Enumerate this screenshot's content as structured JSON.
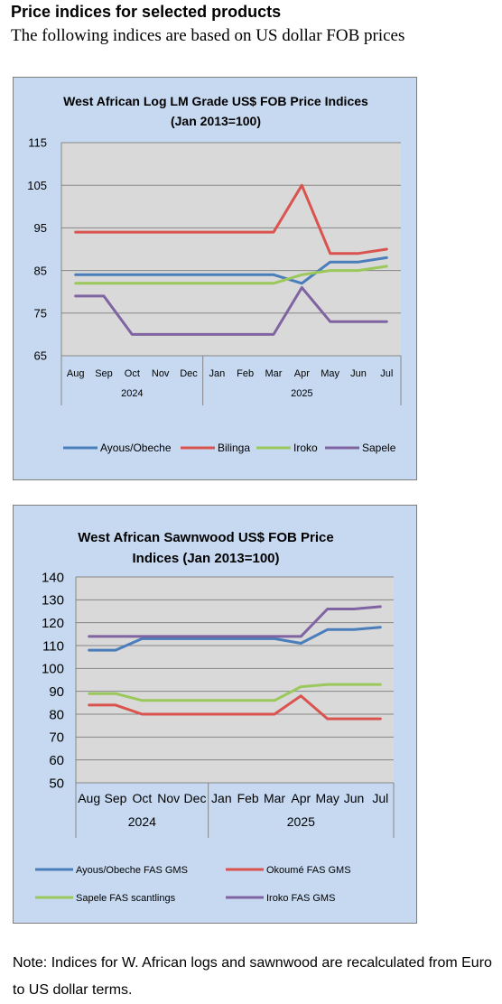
{
  "page": {
    "heading": "Price indices for selected products",
    "subheading": "The following indices are based on US dollar FOB prices",
    "note": "Note: Indices for W. African logs and sawnwood are recalculated from Euro to US dollar terms."
  },
  "chart_data": [
    {
      "type": "line",
      "title_lines": [
        "West African Log LM Grade US$ FOB Price Indices",
        "(Jan 2013=100)"
      ],
      "categories": [
        "Aug",
        "Sep",
        "Oct",
        "Nov",
        "Dec",
        "Jan",
        "Feb",
        "Mar",
        "Apr",
        "May",
        "Jun",
        "Jul"
      ],
      "year_groups": [
        {
          "label": "2024",
          "count": 5
        },
        {
          "label": "2025",
          "count": 7
        }
      ],
      "ylim": [
        65,
        115
      ],
      "yticks": [
        65,
        75,
        85,
        95,
        105,
        115
      ],
      "grid": true,
      "legend": "bottom",
      "series": [
        {
          "name": "Ayous/Obeche",
          "color": "#4a7ebb",
          "values": [
            84,
            84,
            84,
            84,
            84,
            84,
            84,
            84,
            82,
            87,
            87,
            88
          ]
        },
        {
          "name": "Bilinga",
          "color": "#d9534f",
          "values": [
            94,
            94,
            94,
            94,
            94,
            94,
            94,
            94,
            105,
            89,
            89,
            90
          ]
        },
        {
          "name": "Iroko",
          "color": "#9bc85a",
          "values": [
            82,
            82,
            82,
            82,
            82,
            82,
            82,
            82,
            84,
            85,
            85,
            86
          ]
        },
        {
          "name": "Sapele",
          "color": "#8064a2",
          "values": [
            79,
            79,
            70,
            70,
            70,
            70,
            70,
            70,
            81,
            73,
            73,
            73
          ]
        }
      ]
    },
    {
      "type": "line",
      "title_lines": [
        "West African Sawnwood US$ FOB Price",
        "Indices (Jan 2013=100)"
      ],
      "categories": [
        "Aug",
        "Sep",
        "Oct",
        "Nov",
        "Dec",
        "Jan",
        "Feb",
        "Mar",
        "Apr",
        "May",
        "Jun",
        "Jul"
      ],
      "year_groups": [
        {
          "label": "2024",
          "count": 5
        },
        {
          "label": "2025",
          "count": 7
        }
      ],
      "ylim": [
        50,
        140
      ],
      "yticks": [
        50,
        60,
        70,
        80,
        90,
        100,
        110,
        120,
        130,
        140
      ],
      "grid": true,
      "legend": "bottom",
      "series": [
        {
          "name": "Ayous/Obeche  FAS GMS",
          "color": "#4a7ebb",
          "values": [
            108,
            108,
            113,
            113,
            113,
            113,
            113,
            113,
            111,
            117,
            117,
            118
          ]
        },
        {
          "name": "Okoumé  FAS GMS",
          "color": "#d9534f",
          "values": [
            84,
            84,
            80,
            80,
            80,
            80,
            80,
            80,
            88,
            78,
            78,
            78
          ]
        },
        {
          "name": "Sapele FAS scantlings",
          "color": "#9bc85a",
          "values": [
            89,
            89,
            86,
            86,
            86,
            86,
            86,
            86,
            92,
            93,
            93,
            93
          ]
        },
        {
          "name": "Iroko FAS GMS",
          "color": "#8064a2",
          "values": [
            114,
            114,
            114,
            114,
            114,
            114,
            114,
            114,
            114,
            126,
            126,
            127
          ]
        }
      ]
    }
  ]
}
